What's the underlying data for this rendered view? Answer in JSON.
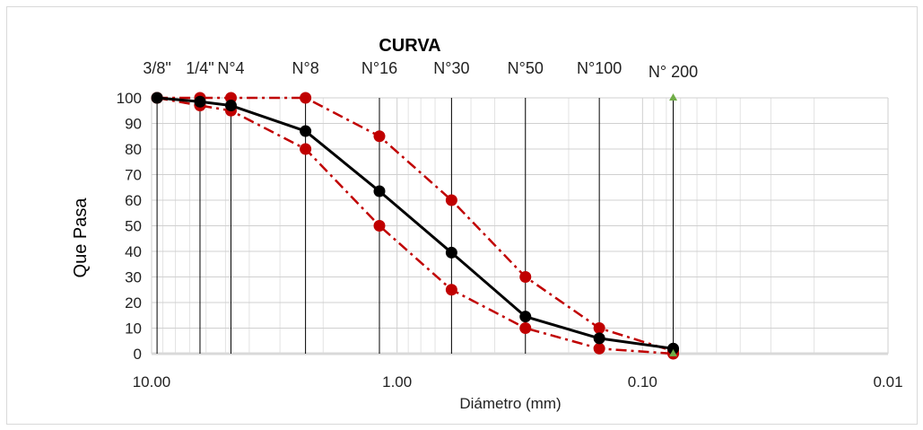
{
  "chart_data": {
    "type": "line",
    "title": "CURVA",
    "xlabel": "Diámetro (mm)",
    "ylabel": "Que Pasa",
    "x_scale": "log",
    "x_reversed": true,
    "xlim": [
      10.0,
      0.01
    ],
    "ylim": [
      0,
      100
    ],
    "x_tick_labels": [
      "10.00",
      "1.00",
      "0.10",
      "0.01"
    ],
    "x_ticks": [
      10,
      1,
      0.1,
      0.01
    ],
    "y_ticks": [
      0,
      10,
      20,
      30,
      40,
      50,
      60,
      70,
      80,
      90,
      100
    ],
    "grid": true,
    "legend": "none",
    "sieves": [
      {
        "label": "3/8\"",
        "diameter": 9.5
      },
      {
        "label": "1/4\"",
        "diameter": 6.35
      },
      {
        "label": "N°4",
        "diameter": 4.75
      },
      {
        "label": "N°8",
        "diameter": 2.36
      },
      {
        "label": "N°16",
        "diameter": 1.18
      },
      {
        "label": "N°30",
        "diameter": 0.6
      },
      {
        "label": "N°50",
        "diameter": 0.3
      },
      {
        "label": "N°100",
        "diameter": 0.15
      },
      {
        "label": "N° 200",
        "diameter": 0.075
      }
    ],
    "series": [
      {
        "color": "#000000",
        "style": "solid",
        "x": [
          9.5,
          6.35,
          4.75,
          2.36,
          1.18,
          0.6,
          0.3,
          0.15,
          0.075
        ],
        "values": [
          100,
          98.5,
          97,
          87,
          63.5,
          39.5,
          14.5,
          6,
          2
        ]
      },
      {
        "color": "#c00000",
        "style": "dash-dot",
        "x": [
          9.5,
          6.35,
          4.75,
          2.36,
          1.18,
          0.6,
          0.3,
          0.15,
          0.075
        ],
        "values": [
          100,
          100,
          100,
          100,
          85,
          60,
          30,
          10,
          1
        ]
      },
      {
        "color": "#c00000",
        "style": "dash-dot",
        "x": [
          9.5,
          6.35,
          4.75,
          2.36,
          1.18,
          0.6,
          0.3,
          0.15,
          0.075
        ],
        "values": [
          100,
          97,
          95,
          80,
          50,
          25,
          10,
          2,
          0
        ]
      }
    ],
    "markers_green": {
      "color": "#70ad47",
      "x": [
        0.075,
        0.075
      ],
      "values": [
        100,
        0
      ]
    }
  }
}
